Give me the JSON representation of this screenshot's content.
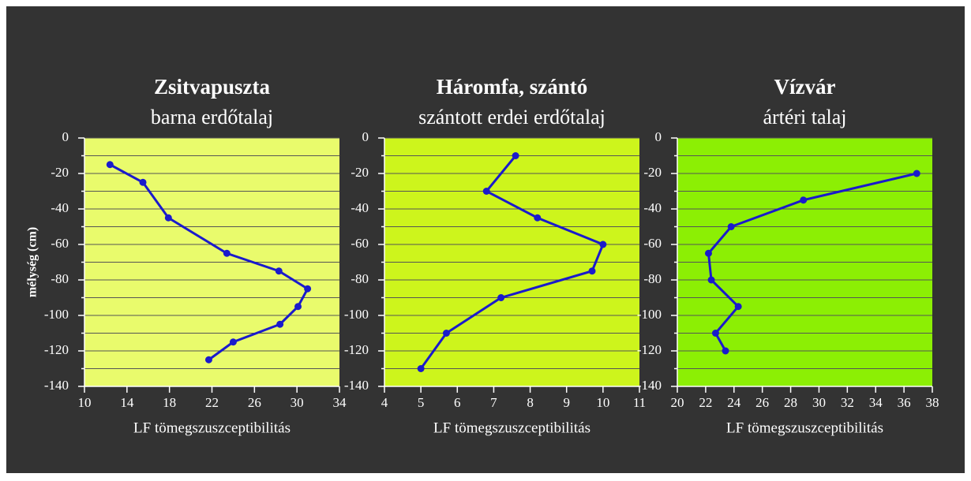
{
  "chart_data": [
    {
      "type": "line",
      "title": "Zsitvapuszta",
      "subtitle": "barna erdőtalaj",
      "xlabel": "LF tömegszuszceptibilitás",
      "ylabel": "mélység (cm)",
      "x": [
        12.4,
        15.5,
        17.9,
        23.4,
        28.3,
        31.0,
        30.1,
        28.4,
        24.0,
        21.7
      ],
      "values": [
        -15,
        -25,
        -45,
        -65,
        -75,
        -85,
        -95,
        -105,
        -115,
        -125
      ],
      "color": "#1a1acc",
      "background": "#e9fb6c",
      "xlim": [
        10,
        34
      ],
      "xticks": [
        10,
        14,
        18,
        22,
        26,
        30,
        34
      ],
      "ylim": [
        -140,
        0
      ],
      "yticks": [
        0,
        -20,
        -40,
        -60,
        -80,
        -100,
        -120,
        -140
      ],
      "grid": true
    },
    {
      "type": "line",
      "title": "Háromfa, szántó",
      "subtitle": "szántott erdei erdőtalaj",
      "xlabel": "LF tömegszuszceptibilitás",
      "x": [
        7.6,
        6.8,
        8.2,
        10.0,
        9.7,
        7.2,
        5.7,
        5.0
      ],
      "values": [
        -10,
        -30,
        -45,
        -60,
        -75,
        -90,
        -110,
        -130
      ],
      "color": "#1a1acc",
      "background": "#cdf51c",
      "xlim": [
        4,
        11
      ],
      "xticks": [
        4,
        5,
        6,
        7,
        8,
        9,
        10,
        11
      ],
      "ylim": [
        -140,
        0
      ],
      "yticks": [
        0,
        -20,
        -40,
        -60,
        -80,
        -100,
        -120,
        -140
      ],
      "grid": true
    },
    {
      "type": "line",
      "title": "Vízvár",
      "subtitle": "ártéri talaj",
      "xlabel": "LF tömegszuszceptibilitás",
      "x": [
        36.9,
        28.9,
        23.8,
        22.2,
        22.4,
        24.3,
        22.7,
        23.4
      ],
      "values": [
        -20,
        -35,
        -50,
        -65,
        -80,
        -95,
        -110,
        -120
      ],
      "color": "#1a1acc",
      "background": "#8cef04",
      "xlim": [
        20,
        38
      ],
      "xticks": [
        20,
        22,
        24,
        26,
        28,
        30,
        32,
        34,
        36,
        38
      ],
      "ylim": [
        -140,
        0
      ],
      "yticks": [
        0,
        -20,
        -40,
        -60,
        -80,
        -100,
        -120,
        -140
      ],
      "grid": true
    }
  ]
}
